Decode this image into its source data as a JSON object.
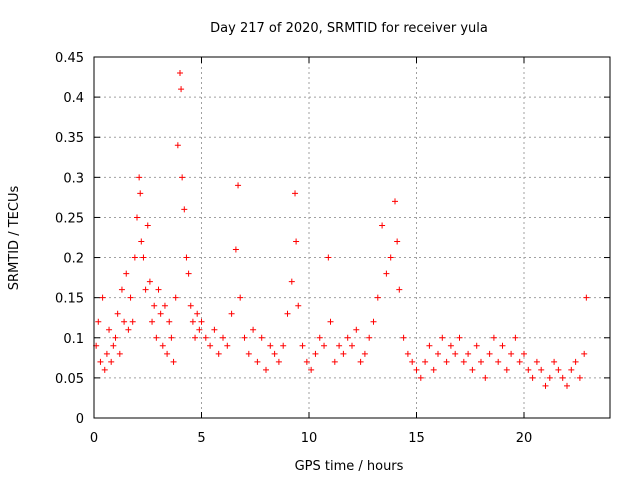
{
  "chart_data": {
    "type": "scatter",
    "title": "Day 217 of 2020, SRMTID for receiver yula",
    "xlabel": "GPS time / hours",
    "ylabel": "SRMTID / TECUs",
    "xlim": [
      0,
      24
    ],
    "ylim": [
      0,
      0.45
    ],
    "xticks": [
      0,
      5,
      10,
      15,
      20
    ],
    "yticks": [
      0,
      0.05,
      0.1,
      0.15,
      0.2,
      0.25,
      0.3,
      0.35,
      0.4,
      0.45
    ],
    "grid": true,
    "marker": "+",
    "color": "#ff0000",
    "series": [
      {
        "name": "SRMTID",
        "x": [
          0.1,
          0.2,
          0.3,
          0.4,
          0.5,
          0.6,
          0.7,
          0.8,
          0.9,
          1.0,
          1.1,
          1.2,
          1.3,
          1.4,
          1.5,
          1.6,
          1.7,
          1.8,
          1.9,
          2.0,
          2.1,
          2.15,
          2.2,
          2.3,
          2.4,
          2.5,
          2.6,
          2.7,
          2.8,
          2.9,
          3.0,
          3.1,
          3.2,
          3.3,
          3.4,
          3.5,
          3.6,
          3.7,
          3.8,
          3.9,
          4.0,
          4.05,
          4.1,
          4.2,
          4.3,
          4.4,
          4.5,
          4.6,
          4.7,
          4.8,
          4.9,
          5.0,
          5.2,
          5.4,
          5.6,
          5.8,
          6.0,
          6.2,
          6.4,
          6.6,
          6.7,
          6.8,
          7.0,
          7.2,
          7.4,
          7.6,
          7.8,
          8.0,
          8.2,
          8.4,
          8.6,
          8.8,
          9.0,
          9.2,
          9.35,
          9.4,
          9.5,
          9.7,
          9.9,
          10.1,
          10.3,
          10.5,
          10.7,
          10.9,
          11.0,
          11.2,
          11.4,
          11.6,
          11.8,
          12.0,
          12.2,
          12.4,
          12.6,
          12.8,
          13.0,
          13.2,
          13.4,
          13.6,
          13.8,
          14.0,
          14.1,
          14.2,
          14.4,
          14.6,
          14.8,
          15.0,
          15.2,
          15.4,
          15.6,
          15.8,
          16.0,
          16.2,
          16.4,
          16.6,
          16.8,
          17.0,
          17.2,
          17.4,
          17.6,
          17.8,
          18.0,
          18.2,
          18.4,
          18.6,
          18.8,
          19.0,
          19.2,
          19.4,
          19.6,
          19.8,
          20.0,
          20.2,
          20.4,
          20.6,
          20.8,
          21.0,
          21.2,
          21.4,
          21.6,
          21.8,
          22.0,
          22.2,
          22.4,
          22.6,
          22.8,
          22.9
        ],
        "y": [
          0.09,
          0.12,
          0.07,
          0.15,
          0.06,
          0.08,
          0.11,
          0.07,
          0.09,
          0.1,
          0.13,
          0.08,
          0.16,
          0.12,
          0.18,
          0.11,
          0.15,
          0.12,
          0.2,
          0.25,
          0.3,
          0.28,
          0.22,
          0.2,
          0.16,
          0.24,
          0.17,
          0.12,
          0.14,
          0.1,
          0.16,
          0.13,
          0.09,
          0.14,
          0.08,
          0.12,
          0.1,
          0.07,
          0.15,
          0.34,
          0.43,
          0.41,
          0.3,
          0.26,
          0.2,
          0.18,
          0.14,
          0.12,
          0.1,
          0.13,
          0.11,
          0.12,
          0.1,
          0.09,
          0.11,
          0.08,
          0.1,
          0.09,
          0.13,
          0.21,
          0.29,
          0.15,
          0.1,
          0.08,
          0.11,
          0.07,
          0.1,
          0.06,
          0.09,
          0.08,
          0.07,
          0.09,
          0.13,
          0.17,
          0.28,
          0.22,
          0.14,
          0.09,
          0.07,
          0.06,
          0.08,
          0.1,
          0.09,
          0.2,
          0.12,
          0.07,
          0.09,
          0.08,
          0.1,
          0.09,
          0.11,
          0.07,
          0.08,
          0.1,
          0.12,
          0.15,
          0.24,
          0.18,
          0.2,
          0.27,
          0.22,
          0.16,
          0.1,
          0.08,
          0.07,
          0.06,
          0.05,
          0.07,
          0.09,
          0.06,
          0.08,
          0.1,
          0.07,
          0.09,
          0.08,
          0.1,
          0.07,
          0.08,
          0.06,
          0.09,
          0.07,
          0.05,
          0.08,
          0.1,
          0.07,
          0.09,
          0.06,
          0.08,
          0.1,
          0.07,
          0.08,
          0.06,
          0.05,
          0.07,
          0.06,
          0.04,
          0.05,
          0.07,
          0.06,
          0.05,
          0.04,
          0.06,
          0.07,
          0.05,
          0.08,
          0.15
        ]
      }
    ]
  }
}
